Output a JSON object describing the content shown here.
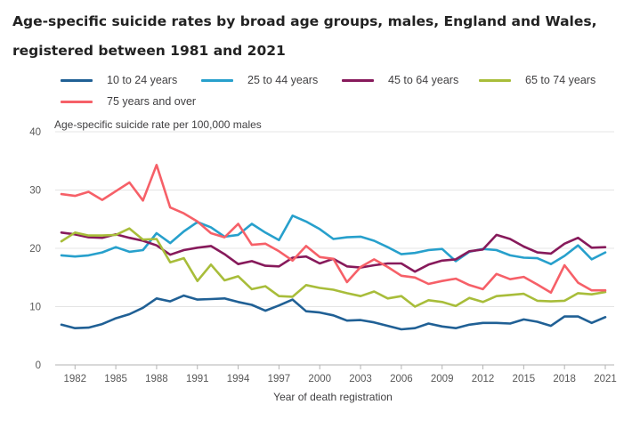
{
  "chart_data": {
    "type": "line",
    "title_line1": "Age-specific suicide rates by broad age groups, males, England and Wales,",
    "title_line2": "registered between 1981 and 2021",
    "ylabel": "Age-specific suicide rate per 100,000 males",
    "xlabel": "Year of death registration",
    "ylim": [
      0,
      40
    ],
    "yticks": [
      0,
      10,
      20,
      30,
      40
    ],
    "xlim": [
      1981,
      2021
    ],
    "xticks": [
      1982,
      1985,
      1988,
      1991,
      1994,
      1997,
      2000,
      2003,
      2006,
      2009,
      2012,
      2015,
      2018,
      2021
    ],
    "grid": true,
    "legend_position": "top",
    "x": [
      1981,
      1982,
      1983,
      1984,
      1985,
      1986,
      1987,
      1988,
      1989,
      1990,
      1991,
      1992,
      1993,
      1994,
      1995,
      1996,
      1997,
      1998,
      1999,
      2000,
      2001,
      2002,
      2003,
      2004,
      2005,
      2006,
      2007,
      2008,
      2009,
      2010,
      2011,
      2012,
      2013,
      2014,
      2015,
      2016,
      2017,
      2018,
      2019,
      2020,
      2021
    ],
    "series": [
      {
        "name": "10 to 24 years",
        "color": "#206095",
        "values": [
          6.9,
          6.3,
          6.4,
          7.0,
          8.0,
          8.7,
          9.8,
          11.4,
          10.9,
          11.9,
          11.2,
          11.3,
          11.4,
          10.8,
          10.3,
          9.3,
          10.2,
          11.2,
          9.2,
          9.0,
          8.5,
          7.6,
          7.7,
          7.3,
          6.7,
          6.1,
          6.3,
          7.1,
          6.6,
          6.3,
          6.9,
          7.2,
          7.2,
          7.1,
          7.8,
          7.4,
          6.7,
          8.3,
          8.3,
          7.2,
          8.2
        ]
      },
      {
        "name": "25 to 44 years",
        "color": "#27a0cc",
        "values": [
          18.8,
          18.6,
          18.8,
          19.3,
          20.2,
          19.4,
          19.7,
          22.6,
          20.9,
          22.9,
          24.5,
          23.6,
          22.0,
          22.3,
          24.2,
          22.7,
          21.4,
          25.6,
          24.6,
          23.3,
          21.6,
          21.9,
          22.0,
          21.3,
          20.2,
          19.0,
          19.2,
          19.7,
          19.9,
          17.8,
          19.4,
          19.9,
          19.7,
          18.8,
          18.4,
          18.3,
          17.3,
          18.7,
          20.5,
          18.1,
          19.3
        ]
      },
      {
        "name": "45 to 64 years",
        "color": "#871a5b",
        "values": [
          22.7,
          22.4,
          21.9,
          21.8,
          22.4,
          21.8,
          21.3,
          20.5,
          18.9,
          19.7,
          20.1,
          20.4,
          19.0,
          17.3,
          17.8,
          17.0,
          16.9,
          18.4,
          18.6,
          17.4,
          18.2,
          16.9,
          16.7,
          17.1,
          17.4,
          17.4,
          16.0,
          17.2,
          17.9,
          18.1,
          19.5,
          19.8,
          22.3,
          21.6,
          20.3,
          19.3,
          19.1,
          20.8,
          21.8,
          20.1,
          20.2
        ]
      },
      {
        "name": "65 to 74 years",
        "color": "#a8bd3a",
        "values": [
          21.2,
          22.7,
          22.2,
          22.2,
          22.3,
          23.4,
          21.5,
          21.6,
          17.6,
          18.3,
          14.4,
          17.2,
          14.5,
          15.2,
          13.0,
          13.5,
          11.8,
          11.7,
          13.7,
          13.2,
          12.9,
          12.3,
          11.8,
          12.6,
          11.4,
          11.8,
          10.0,
          11.1,
          10.8,
          10.1,
          11.5,
          10.8,
          11.8,
          12.0,
          12.2,
          11.0,
          10.9,
          11.0,
          12.3,
          12.1,
          12.5
        ]
      },
      {
        "name": "75 years and over",
        "color": "#f66068",
        "values": [
          29.3,
          29.0,
          29.7,
          28.3,
          29.8,
          31.3,
          28.2,
          34.3,
          27.0,
          26.0,
          24.6,
          22.6,
          21.9,
          24.2,
          20.6,
          20.8,
          19.5,
          17.9,
          20.4,
          18.5,
          18.2,
          14.2,
          16.8,
          18.1,
          16.8,
          15.3,
          15.0,
          13.9,
          14.4,
          14.8,
          13.7,
          13.0,
          15.6,
          14.7,
          15.1,
          13.8,
          12.4,
          17.1,
          14.1,
          12.8,
          12.8
        ]
      }
    ]
  }
}
